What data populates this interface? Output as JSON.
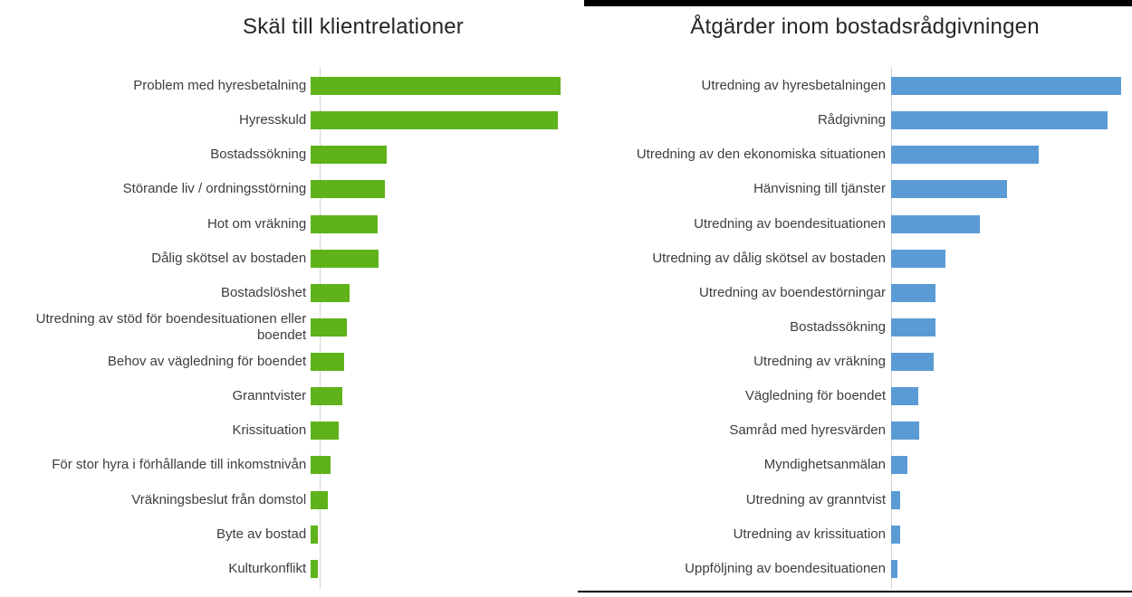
{
  "decorations": {
    "top_rule_color": "#000000",
    "bottom_rule_color": "#000000"
  },
  "chart_data": [
    {
      "type": "bar",
      "orientation": "horizontal",
      "title": "Skäl till klientrelationer",
      "bar_color": "#5fb219",
      "legend": "none",
      "gridlines": false,
      "value_axis_labels_visible": false,
      "xlim_percent_of_scale": [
        0,
        100
      ],
      "categories": [
        "Problem med hyresbetalning",
        "Hyresskuld",
        "Bostadssökning",
        "Störande liv / ordningsstörning",
        "Hot om vräkning",
        "Dålig skötsel av bostaden",
        "Bostadslöshet",
        "Utredning av stöd för boendesituationen eller boendet",
        "Behov av vägledning för boendet",
        "Granntvister",
        "Krissituation",
        "För stor hyra i förhållande till inkomstnivån",
        "Vräkningsbeslut från domstol",
        "Byte av bostad",
        "Kulturkonflikt"
      ],
      "values": [
        97.8,
        96.7,
        29.8,
        28.9,
        26.3,
        26.6,
        15.1,
        14.2,
        13.1,
        12.4,
        11.0,
        7.6,
        6.8,
        2.7,
        2.7
      ]
    },
    {
      "type": "bar",
      "orientation": "horizontal",
      "title": "Åtgärder inom bostadsrådgivningen",
      "bar_color": "#5b9bd5",
      "legend": "none",
      "gridlines": false,
      "value_axis_labels_visible": false,
      "xlim_percent_of_scale": [
        0,
        100
      ],
      "categories": [
        "Utredning av hyresbetalningen",
        "Rådgivning",
        "Utredning av den ekonomiska situationen",
        "Hänvisning till tjänster",
        "Utredning av boendesituationen",
        "Utredning av dålig skötsel av bostaden",
        "Utredning av boendestörningar",
        "Bostadssökning",
        "Utredning av vräkning",
        "Vägledning för boendet",
        "Samråd med hyresvärden",
        "Myndighetsanmälan",
        "Utredning av granntvist",
        "Utredning av krissituation",
        "Uppföljning av boendesituationen"
      ],
      "values": [
        97.8,
        92.0,
        62.8,
        49.1,
        37.6,
        23.1,
        19.0,
        19.0,
        18.0,
        11.7,
        12.0,
        6.8,
        4.0,
        4.0,
        2.7
      ]
    }
  ]
}
